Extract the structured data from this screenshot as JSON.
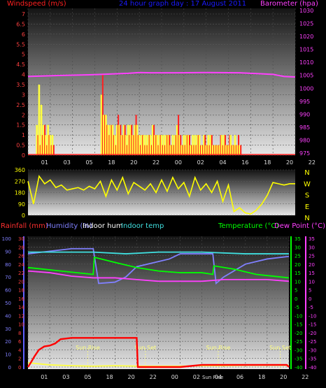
{
  "header": {
    "windspeed_label": "Windspeed (m/s)",
    "graph_title": "24 hour graph day : 17 August 2011",
    "barometer_label": "Barometer (hpa)"
  },
  "lower_header": {
    "rainfall_label": "Rainfall (mm)",
    "humidity_label": "Humidity (%)",
    "indoor_hum_label": "Indoor hum",
    "indoor_temp_label": "Indoor temp",
    "temperature_label": "Temperature (°C)",
    "dew_point_label": "Dew Point (°C)"
  },
  "colors": {
    "windspeed": "#ff2020",
    "gust": "#ffff40",
    "barometer": "#ff40ff",
    "direction": "#ffff00",
    "humidity": "#8080ff",
    "indoor_temp": "#40e0e0",
    "temperature": "#00ff00",
    "dew_point": "#ff40ff",
    "rain": "#ff0000",
    "title": "#0000ff",
    "axis_left": "#ff4040",
    "axis_right": "#ff40ff"
  },
  "chart_data": [
    {
      "type": "line",
      "name": "wind-barometer",
      "x_ticks": [
        "01",
        "03",
        "05",
        "18",
        "20",
        "22",
        "00",
        "02",
        "04",
        "16",
        "18",
        "20",
        "22"
      ],
      "y_left_ticks": [
        "7",
        "6.5",
        "6",
        "5.5",
        "5",
        "4.5",
        "4",
        "3.5",
        "3",
        "2.5",
        "2",
        "1.5",
        "1",
        "0.5",
        "0"
      ],
      "y_right_ticks": [
        "1030",
        "1025",
        "1020",
        "1015",
        "1010",
        "1005",
        "1000",
        "995",
        "990",
        "985",
        "980",
        "975"
      ],
      "ylim_left": [
        0,
        7
      ],
      "ylim_right": [
        973.5,
        1030
      ],
      "grid": true,
      "series": [
        {
          "name": "Barometer",
          "x": [
            0,
            3,
            6,
            9,
            10,
            11,
            13,
            16,
            19,
            21,
            22,
            23,
            24
          ],
          "values": [
            1003.8,
            1004.2,
            1004.5,
            1005.0,
            1005.3,
            1005.2,
            1005.2,
            1005.3,
            1005.2,
            1004.8,
            1004.6,
            1003.8,
            1003.6
          ]
        }
      ],
      "wind_bars": {
        "x": [
          0.8,
          1.0,
          1.2,
          1.4,
          1.6,
          1.8,
          2.0,
          2.2,
          6.6,
          6.8,
          7.0,
          7.2,
          7.4,
          7.6,
          7.8,
          8.0,
          8.2,
          8.4,
          8.6,
          8.8,
          9.0,
          9.2,
          9.4,
          9.6,
          9.8,
          10.0,
          10.2,
          10.4,
          10.6,
          10.8,
          11.0,
          11.2,
          11.4,
          11.6,
          11.8,
          12.0,
          12.2,
          12.4,
          12.6,
          12.8,
          13.0,
          13.2,
          13.4,
          13.6,
          13.8,
          14.0,
          14.2,
          14.4,
          14.6,
          14.8,
          15.0,
          15.2,
          15.4,
          15.6,
          15.8,
          16.0,
          16.2,
          16.4,
          16.6,
          16.8,
          17.0,
          17.2,
          17.4,
          17.6,
          17.8,
          18.0,
          18.2,
          18.4,
          18.6,
          18.8,
          19.0
        ],
        "speed": [
          1.0,
          0.5,
          1.0,
          1.5,
          0.5,
          1.0,
          0.5,
          0.5,
          4.0,
          2.0,
          1.5,
          1.0,
          1.5,
          1.0,
          0.5,
          2.0,
          1.5,
          1.0,
          1.5,
          0.5,
          1.0,
          1.5,
          1.0,
          2.0,
          1.0,
          0.5,
          1.0,
          0.5,
          0.5,
          1.0,
          0.5,
          1.5,
          1.0,
          0.5,
          1.0,
          0.5,
          0.5,
          1.0,
          1.0,
          0.5,
          0.5,
          1.0,
          2.0,
          1.0,
          0.5,
          0.5,
          1.0,
          1.0,
          0.5,
          0.5,
          0.5,
          1.0,
          0.5,
          0.5,
          1.0,
          0.5,
          0.5,
          1.0,
          0.5,
          0.5,
          0.5,
          1.0,
          0.5,
          1.0,
          0.5,
          1.0,
          0.5,
          0.5,
          0.5,
          1.0,
          0.5
        ],
        "gust": [
          1.5,
          3.5,
          2.5,
          1.5,
          1.0,
          1.5,
          1.0,
          1.0,
          3.0,
          2.0,
          2.0,
          1.5,
          1.5,
          1.5,
          1.0,
          1.5,
          1.5,
          1.0,
          1.5,
          1.0,
          1.5,
          1.5,
          1.0,
          1.5,
          1.5,
          1.0,
          1.0,
          1.0,
          1.0,
          1.0,
          1.0,
          1.5,
          1.0,
          1.0,
          1.0,
          1.0,
          1.0,
          1.0,
          1.0,
          0.5,
          1.0,
          1.0,
          1.5,
          1.0,
          0.5,
          1.0,
          1.0,
          1.0,
          0.5,
          1.0,
          1.0,
          1.0,
          1.0,
          0.5,
          1.0,
          0.5,
          1.0,
          1.0,
          0.5,
          0.5,
          0.5,
          0.5,
          1.0,
          1.0,
          0.5,
          0.5,
          1.0,
          0.5,
          1.0,
          0.5,
          0.5
        ]
      }
    },
    {
      "type": "line",
      "name": "wind-direction",
      "x_ticks": [],
      "y_ticks": [
        "360",
        "270",
        "180",
        "90",
        "0"
      ],
      "direction_labels": [
        "N",
        "W",
        "S",
        "E",
        "N"
      ],
      "ylim": [
        0,
        360
      ],
      "series": [
        {
          "name": "Direction",
          "x": [
            0,
            0.5,
            1,
            1.5,
            2,
            2.5,
            3,
            3.5,
            4,
            4.5,
            5,
            5.5,
            6,
            6.5,
            7,
            7.5,
            8,
            8.5,
            9,
            9.5,
            10,
            10.5,
            11,
            11.5,
            12,
            12.5,
            13,
            13.5,
            14,
            14.5,
            15,
            15.5,
            16,
            16.5,
            17,
            17.5,
            18,
            18.5,
            19,
            19.5,
            20,
            20.5,
            21,
            21.5,
            22,
            22.5,
            23,
            23.5,
            24
          ],
          "values": [
            270,
            90,
            310,
            250,
            280,
            220,
            240,
            200,
            210,
            220,
            200,
            230,
            210,
            270,
            150,
            280,
            200,
            300,
            170,
            260,
            230,
            200,
            250,
            180,
            280,
            190,
            300,
            210,
            260,
            150,
            300,
            200,
            250,
            180,
            270,
            110,
            240,
            30,
            60,
            20,
            10,
            40,
            90,
            160,
            260,
            250,
            240,
            250,
            250
          ]
        }
      ]
    },
    {
      "type": "line",
      "name": "temperature-humidity-rain",
      "x_ticks": [
        "01",
        "03",
        "05",
        "18",
        "20",
        "22",
        "00",
        "02",
        "04",
        "06",
        "18",
        "20",
        "22"
      ],
      "y_rain_ticks": [
        "30",
        "28",
        "26",
        "24",
        "22",
        "20",
        "18",
        "16",
        "14",
        "12",
        "10",
        "8",
        "6",
        "4",
        "2",
        "0"
      ],
      "y_hum_ticks": [
        "100",
        "90",
        "80",
        "70",
        "60",
        "50",
        "40",
        "30",
        "20",
        "10",
        "0"
      ],
      "y_temp_ticks": [
        "35",
        "30",
        "25",
        "20",
        "15",
        "10",
        "5",
        "0",
        "-5",
        "-10",
        "-15",
        "-20",
        "-25",
        "-30",
        "-35",
        "-40"
      ],
      "ylim_rain": [
        0,
        30
      ],
      "ylim_hum": [
        0,
        100
      ],
      "ylim_temp": [
        -40,
        35
      ],
      "annotations": [
        "Sun Rise",
        "Sun Set",
        "Sun Rise",
        "Sun Set",
        "Sun Rise"
      ],
      "series": [
        {
          "name": "Humidity",
          "x": [
            0,
            2,
            4,
            5,
            6,
            6.5,
            8,
            9,
            10,
            12,
            13,
            14,
            16,
            17,
            17.3,
            18,
            20,
            22,
            24
          ],
          "values": [
            88,
            90,
            92,
            92,
            92,
            65,
            66,
            70,
            78,
            82,
            84,
            88,
            88,
            88,
            65,
            70,
            80,
            84,
            86
          ]
        },
        {
          "name": "Indoor temp",
          "x": [
            0,
            6,
            9,
            12,
            16,
            20,
            24
          ],
          "values": [
            27,
            27,
            26,
            27,
            27,
            26,
            26
          ]
        },
        {
          "name": "Temperature",
          "x": [
            0,
            3,
            6,
            6.1,
            8,
            10,
            12,
            14,
            16,
            17,
            17.1,
            19,
            21,
            24
          ],
          "values": [
            18,
            16,
            14,
            24,
            21,
            18,
            16,
            15,
            15,
            14,
            19,
            17,
            14,
            12
          ]
        },
        {
          "name": "Dew Point",
          "x": [
            0,
            2,
            4,
            6,
            8,
            10,
            12,
            14,
            16,
            18,
            20,
            22,
            24
          ],
          "values": [
            16,
            15,
            13,
            12,
            12,
            11,
            10,
            10,
            10,
            11,
            11,
            11,
            10
          ]
        },
        {
          "name": "Indoor hum",
          "x": [
            0,
            2,
            4,
            6,
            8,
            10,
            12,
            14,
            16,
            18,
            20,
            22,
            24
          ],
          "values": [
            1,
            0.5,
            0.3,
            0.2,
            0.3,
            0.2,
            0.2,
            0.2,
            0.3,
            0.3,
            0.4,
            0.4,
            0.4
          ]
        },
        {
          "name": "Rainfall",
          "x": [
            0,
            0.3,
            0.6,
            1,
            1.5,
            2,
            2.5,
            3,
            4,
            8,
            9,
            10,
            10.1,
            14,
            16,
            20,
            22,
            23.8,
            24
          ],
          "values": [
            0,
            1.2,
            2.5,
            4,
            4.8,
            5,
            5.5,
            6.5,
            6.8,
            6.8,
            6.8,
            6.8,
            0,
            0,
            0.5,
            0.5,
            0.5,
            0.5,
            0
          ]
        }
      ]
    }
  ]
}
